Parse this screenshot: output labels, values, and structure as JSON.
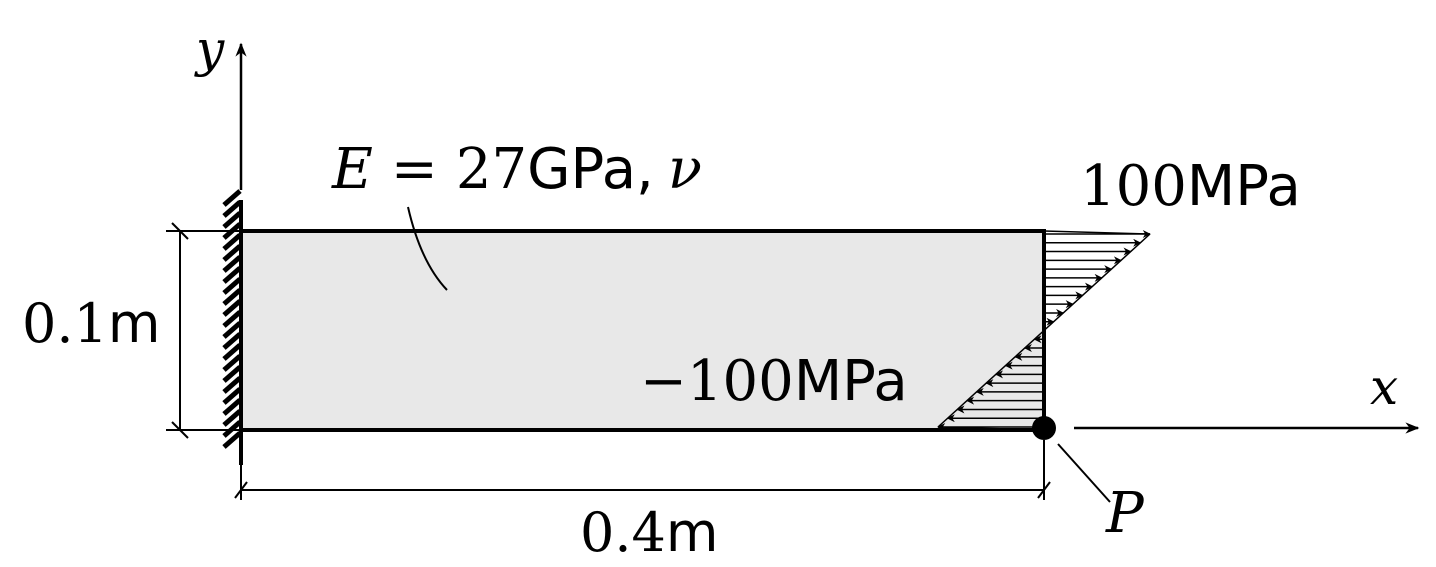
{
  "axes": {
    "y_label": "y",
    "x_label": "x"
  },
  "material": {
    "E_symbol": "E",
    "equals": "=",
    "E_value": "27",
    "E_unit": "GPa,",
    "nu_symbol": "ν"
  },
  "dimensions": {
    "height_value": "0.1",
    "height_unit": "m",
    "length_value": "0.4",
    "length_unit": "m"
  },
  "loads": {
    "top_value": "100",
    "top_unit": "MPa",
    "bottom_value": "−100",
    "bottom_unit": "MPa"
  },
  "point_label": "P"
}
